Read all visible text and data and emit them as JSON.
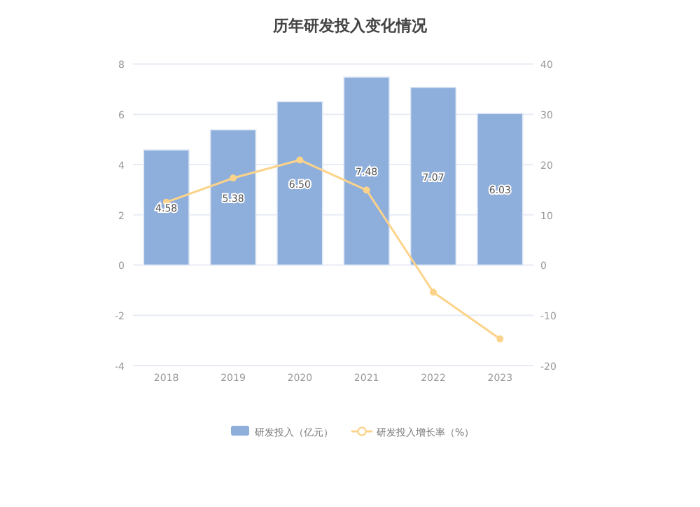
{
  "chart_data": {
    "type": "bar",
    "title": "历年研发投入变化情况",
    "categories": [
      "2018",
      "2019",
      "2020",
      "2021",
      "2022",
      "2023"
    ],
    "series": [
      {
        "name": "研发投入（亿元）",
        "color": "#8eaedb",
        "values": [
          4.58,
          5.38,
          6.5,
          7.48,
          7.07,
          6.03
        ],
        "value_labels": [
          "4.58",
          "5.38",
          "6.50",
          "7.48",
          "7.07",
          "6.03"
        ]
      },
      {
        "name": "研发投入增长率（%）",
        "type": "line",
        "axis": "y2",
        "color": "#fcd38a",
        "marker": "circle",
        "values": [
          12.5,
          17.3,
          20.9,
          14.9,
          -5.4,
          -14.7
        ]
      }
    ],
    "ylim": [
      -4,
      8
    ],
    "yticks": [
      -4,
      -2,
      0,
      2,
      4,
      6,
      8
    ],
    "y2lim": [
      -20,
      40
    ],
    "y2ticks": [
      -20,
      -10,
      0,
      10,
      20,
      30,
      40
    ],
    "grid": "y",
    "legend": "bottom"
  }
}
